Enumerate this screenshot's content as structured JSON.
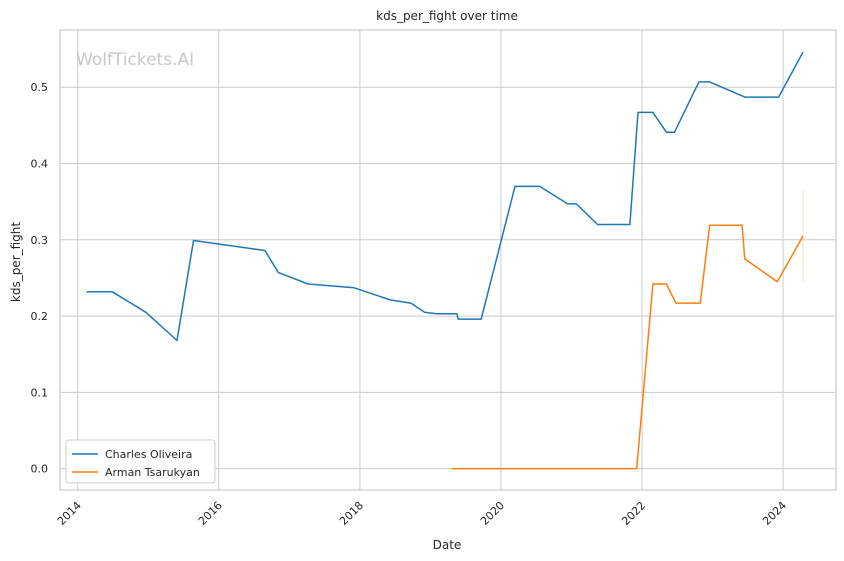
{
  "chart_data": {
    "type": "line",
    "title": "kds_per_fight over time",
    "xlabel": "Date",
    "ylabel": "kds_per_fight",
    "watermark": "WolfTickets.AI",
    "xlim": [
      "2013-10-01",
      "2024-10-01"
    ],
    "ylim": [
      -0.028,
      0.575
    ],
    "x_ticks": [
      "2014",
      "2016",
      "2018",
      "2020",
      "2022",
      "2024"
    ],
    "y_ticks": [
      "0.0",
      "0.1",
      "0.2",
      "0.3",
      "0.4",
      "0.5"
    ],
    "grid": true,
    "legend_position": "lower-left",
    "series": [
      {
        "name": "Charles Oliveira",
        "color": "#1f77b4",
        "points": [
          [
            "2014-02-15",
            0.232
          ],
          [
            "2014-06-28",
            0.232
          ],
          [
            "2014-12-20",
            0.205
          ],
          [
            "2015-05-30",
            0.168
          ],
          [
            "2015-08-23",
            0.299
          ],
          [
            "2016-08-27",
            0.286
          ],
          [
            "2016-11-05",
            0.257
          ],
          [
            "2017-04-08",
            0.242
          ],
          [
            "2017-12-02",
            0.237
          ],
          [
            "2018-06-09",
            0.221
          ],
          [
            "2018-09-22",
            0.217
          ],
          [
            "2018-12-02",
            0.205
          ],
          [
            "2019-02-02",
            0.203
          ],
          [
            "2019-05-18",
            0.203
          ],
          [
            "2019-05-25",
            0.196
          ],
          [
            "2019-09-21",
            0.196
          ],
          [
            "2020-03-14",
            0.37
          ],
          [
            "2020-07-20",
            0.37
          ],
          [
            "2020-12-12",
            0.347
          ],
          [
            "2021-01-26",
            0.347
          ],
          [
            "2021-05-15",
            0.32
          ],
          [
            "2021-10-30",
            0.32
          ],
          [
            "2021-12-11",
            0.467
          ],
          [
            "2022-02-26",
            0.467
          ],
          [
            "2022-05-07",
            0.441
          ],
          [
            "2022-06-18",
            0.441
          ],
          [
            "2022-10-22",
            0.507
          ],
          [
            "2022-12-17",
            0.507
          ],
          [
            "2023-06-17",
            0.487
          ],
          [
            "2023-12-09",
            0.487
          ],
          [
            "2024-04-13",
            0.546
          ]
        ]
      },
      {
        "name": "Arman Tsarukyan",
        "color": "#ff7f0e",
        "points": [
          [
            "2019-04-20",
            0.0
          ],
          [
            "2021-12-04",
            0.0
          ],
          [
            "2022-02-26",
            0.242
          ],
          [
            "2022-05-07",
            0.242
          ],
          [
            "2022-06-25",
            0.217
          ],
          [
            "2022-10-29",
            0.217
          ],
          [
            "2022-12-17",
            0.319
          ],
          [
            "2023-06-03",
            0.319
          ],
          [
            "2023-06-17",
            0.275
          ],
          [
            "2023-12-02",
            0.245
          ],
          [
            "2024-04-13",
            0.305
          ]
        ]
      }
    ]
  }
}
